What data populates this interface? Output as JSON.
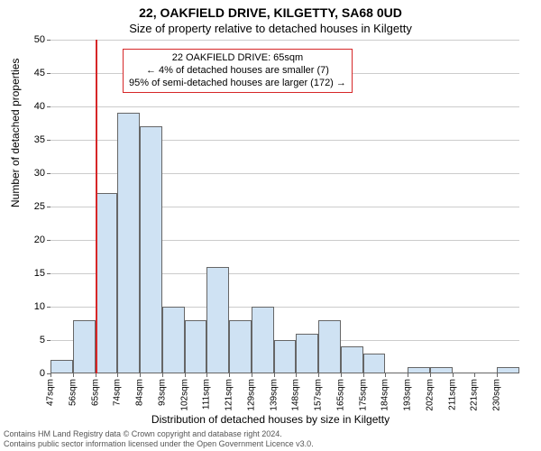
{
  "titles": {
    "main": "22, OAKFIELD DRIVE, KILGETTY, SA68 0UD",
    "sub": "Size of property relative to detached houses in Kilgetty"
  },
  "axes": {
    "ylabel": "Number of detached properties",
    "xlabel": "Distribution of detached houses by size in Kilgetty"
  },
  "chart": {
    "type": "histogram",
    "ylim": [
      0,
      50
    ],
    "ytick_step": 5,
    "background_color": "#ffffff",
    "grid_color": "#cccccc",
    "bar_fill": "#cfe2f3",
    "bar_stroke": "#666666",
    "bar_width_ratio": 1.0,
    "marker": {
      "value_index": 2,
      "color": "#d62728",
      "width": 2
    },
    "xlabels": [
      "47sqm",
      "56sqm",
      "65sqm",
      "74sqm",
      "84sqm",
      "93sqm",
      "102sqm",
      "111sqm",
      "121sqm",
      "129sqm",
      "139sqm",
      "148sqm",
      "157sqm",
      "165sqm",
      "175sqm",
      "184sqm",
      "193sqm",
      "202sqm",
      "211sqm",
      "221sqm",
      "230sqm"
    ],
    "values": [
      2,
      8,
      27,
      39,
      37,
      10,
      8,
      16,
      8,
      10,
      5,
      6,
      8,
      4,
      3,
      0,
      1,
      1,
      0,
      0,
      1
    ]
  },
  "annotation": {
    "border_color": "#d62728",
    "line1": "22 OAKFIELD DRIVE: 65sqm",
    "line2": "← 4% of detached houses are smaller (7)",
    "line3": "95% of semi-detached houses are larger (172) →"
  },
  "footer": {
    "line1": "Contains HM Land Registry data © Crown copyright and database right 2024.",
    "line2": "Contains public sector information licensed under the Open Government Licence v3.0."
  }
}
